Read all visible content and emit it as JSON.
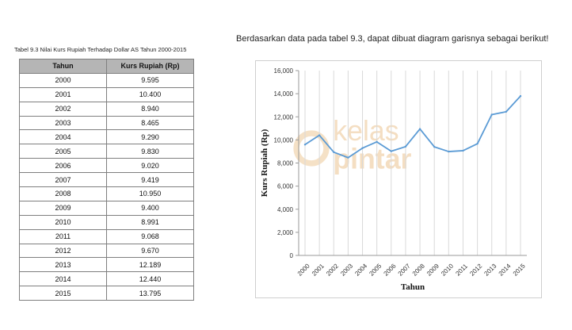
{
  "table": {
    "title": "Tabel 9.3 Nilai Kurs Rupiah Terhadap Dollar AS Tahun 2000-2015",
    "headers": [
      "Tahun",
      "Kurs Rupiah (Rp)"
    ],
    "rows": [
      [
        "2000",
        "9.595"
      ],
      [
        "2001",
        "10.400"
      ],
      [
        "2002",
        "8.940"
      ],
      [
        "2003",
        "8.465"
      ],
      [
        "2004",
        "9.290"
      ],
      [
        "2005",
        "9.830"
      ],
      [
        "2006",
        "9.020"
      ],
      [
        "2007",
        "9.419"
      ],
      [
        "2008",
        "10.950"
      ],
      [
        "2009",
        "9.400"
      ],
      [
        "2010",
        "8.991"
      ],
      [
        "2011",
        "9.068"
      ],
      [
        "2012",
        "9.670"
      ],
      [
        "2013",
        "12.189"
      ],
      [
        "2014",
        "12.440"
      ],
      [
        "2015",
        "13.795"
      ]
    ]
  },
  "intro_text": "Berdasarkan data pada tabel 9.3, dapat dibuat diagram garisnya sebagai berikut!",
  "watermark": {
    "line1": "kelas",
    "line2": "pintar"
  },
  "colors": {
    "line": "#5b9bd5",
    "grid": "#d9d9d9",
    "table_header": "#b5b5b5",
    "watermark": "#f3d9b8"
  },
  "chart_data": {
    "type": "line",
    "title": "",
    "xlabel": "Tahun",
    "ylabel": "Kurs Rupiah (Rp)",
    "categories": [
      "2000",
      "2001",
      "2002",
      "2003",
      "2004",
      "2005",
      "2006",
      "2007",
      "2008",
      "2009",
      "2010",
      "2011",
      "2012",
      "2013",
      "2014",
      "2015"
    ],
    "series": [
      {
        "values": [
          9595,
          10400,
          8940,
          8465,
          9290,
          9830,
          9020,
          9419,
          10950,
          9400,
          8991,
          9068,
          9670,
          12189,
          12440,
          13795
        ]
      }
    ],
    "ylim": [
      0,
      16000
    ],
    "yticks": [
      0,
      2000,
      4000,
      6000,
      8000,
      10000,
      12000,
      14000,
      16000
    ],
    "ytick_labels": [
      "0",
      "2,000",
      "4,000",
      "6,000",
      "8,000",
      "10,000",
      "12,000",
      "14,000",
      "16,000"
    ],
    "grid": "vertical",
    "legend": "none"
  }
}
